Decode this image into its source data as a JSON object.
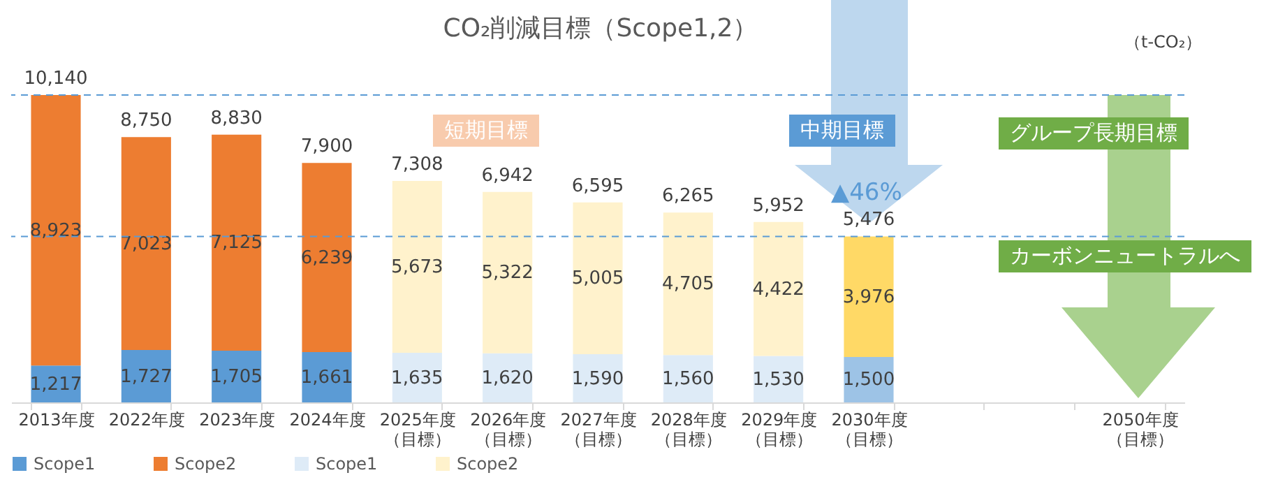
{
  "chart_data": {
    "type": "bar",
    "title": "CO₂削減目標（Scope1,2）",
    "stacked": true,
    "legend": "bottom",
    "grid": false,
    "categories": [
      "2013年度",
      "2022年度",
      "2023年度",
      "2024年度",
      "2025年度（目標）",
      "2026年度（目標）",
      "2027年度（目標）",
      "2028年度（目標）",
      "2029年度（目標）",
      "2030年度（目標）",
      null,
      null,
      "2050年度（目標）"
    ],
    "series": [
      {
        "name": "Scope1",
        "color": "#5b9bd5",
        "values": [
          1217,
          1727,
          1705,
          1661,
          null,
          null,
          null,
          null,
          null,
          null,
          null,
          null,
          null
        ],
        "value_labels": [
          "1,217",
          "1,727",
          "1,705",
          "1,661",
          null,
          null,
          null,
          null,
          null,
          null,
          null,
          null,
          null
        ]
      },
      {
        "name": "Scope2",
        "color": "#ed7d31",
        "values": [
          8923,
          7023,
          7125,
          6239,
          null,
          null,
          null,
          null,
          null,
          null,
          null,
          null,
          null
        ],
        "value_labels": [
          "8,923",
          "7,023",
          "7,125",
          "6,239",
          null,
          null,
          null,
          null,
          null,
          null,
          null,
          null,
          null
        ]
      },
      {
        "name": "Scope1",
        "color": "#deebf7",
        "values": [
          null,
          null,
          null,
          null,
          1635,
          1620,
          1590,
          1560,
          1530,
          null,
          null,
          null,
          null
        ],
        "value_labels": [
          null,
          null,
          null,
          null,
          "1,635",
          "1,620",
          "1,590",
          "1,560",
          "1,530",
          null,
          null,
          null,
          null
        ]
      },
      {
        "name": "Scope2",
        "color": "#fff2cc",
        "values": [
          null,
          null,
          null,
          null,
          5673,
          5322,
          5005,
          4705,
          4422,
          null,
          null,
          null,
          null
        ],
        "value_labels": [
          null,
          null,
          null,
          null,
          "5,673",
          "5,322",
          "5,005",
          "4,705",
          "4,422",
          null,
          null,
          null,
          null
        ]
      },
      {
        "color": "#9dc3e6",
        "values": [
          null,
          null,
          null,
          null,
          null,
          null,
          null,
          null,
          null,
          1500,
          null,
          null,
          null
        ],
        "value_labels": [
          null,
          null,
          null,
          null,
          null,
          null,
          null,
          null,
          null,
          "1,500",
          null,
          null,
          null
        ]
      },
      {
        "color": "#ffd966",
        "values": [
          null,
          null,
          null,
          null,
          null,
          null,
          null,
          null,
          null,
          3976,
          null,
          null,
          null
        ],
        "value_labels": [
          null,
          null,
          null,
          null,
          null,
          null,
          null,
          null,
          null,
          "3,976",
          null,
          null,
          null
        ]
      }
    ],
    "totals": [
      "10,140",
      "8,750",
      "8,830",
      "7,900",
      "7,308",
      "6,942",
      "6,595",
      "6,265",
      "5,952",
      "5,476",
      null,
      null,
      null
    ],
    "ref_lines": [
      {
        "axis": "y",
        "value": 10140,
        "color": "#5b9bd5",
        "line_style": "dashed"
      },
      {
        "axis": "y",
        "value": 5476,
        "color": "#5b9bd5",
        "line_style": "dashed"
      }
    ],
    "annotations": [
      "短期目標",
      "中期目標",
      "▲46%",
      "グループ長期目標",
      "カーボンニュートラルへ",
      "（t-CO₂）"
    ]
  }
}
